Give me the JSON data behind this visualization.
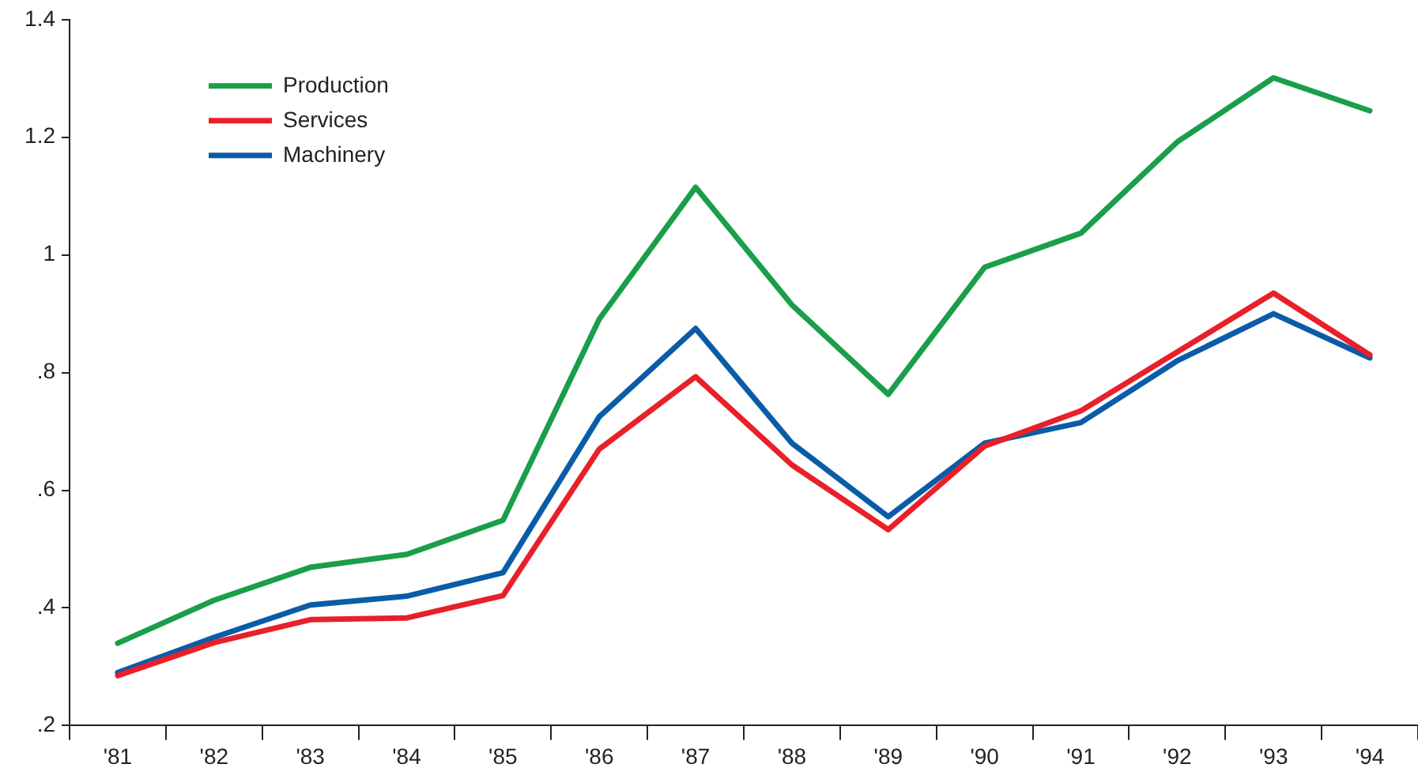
{
  "chart_data": {
    "type": "line",
    "categories": [
      "'81",
      "'82",
      "'83",
      "'84",
      "'85",
      "'86",
      "'87",
      "'88",
      "'89",
      "'90",
      "'91",
      "'92",
      "'93",
      "'94"
    ],
    "series": [
      {
        "name": "Production",
        "color": "#1a9e4a",
        "values": [
          0.34,
          0.413,
          0.469,
          0.491,
          0.549,
          0.891,
          1.115,
          0.915,
          0.763,
          0.979,
          1.037,
          1.192,
          1.301,
          1.245
        ]
      },
      {
        "name": "Services",
        "color": "#e8202a",
        "values": [
          0.285,
          0.341,
          0.38,
          0.383,
          0.421,
          0.67,
          0.793,
          0.643,
          0.533,
          0.675,
          0.735,
          0.835,
          0.935,
          0.83
        ]
      },
      {
        "name": "Machinery",
        "color": "#0a5ca8",
        "values": [
          0.29,
          0.35,
          0.405,
          0.42,
          0.46,
          0.725,
          0.875,
          0.68,
          0.555,
          0.68,
          0.715,
          0.82,
          0.9,
          0.825
        ]
      }
    ],
    "ylim": [
      0.2,
      1.4
    ],
    "yticks": [
      {
        "value": 0.2,
        "label": ".2"
      },
      {
        "value": 0.4,
        "label": ".4"
      },
      {
        "value": 0.6,
        "label": ".6"
      },
      {
        "value": 0.8,
        "label": ".8"
      },
      {
        "value": 1,
        "label": "1"
      },
      {
        "value": 1.2,
        "label": "1.2"
      },
      {
        "value": 1.4,
        "label": "1.4"
      }
    ],
    "legend": "top left",
    "line_style": "solid"
  }
}
